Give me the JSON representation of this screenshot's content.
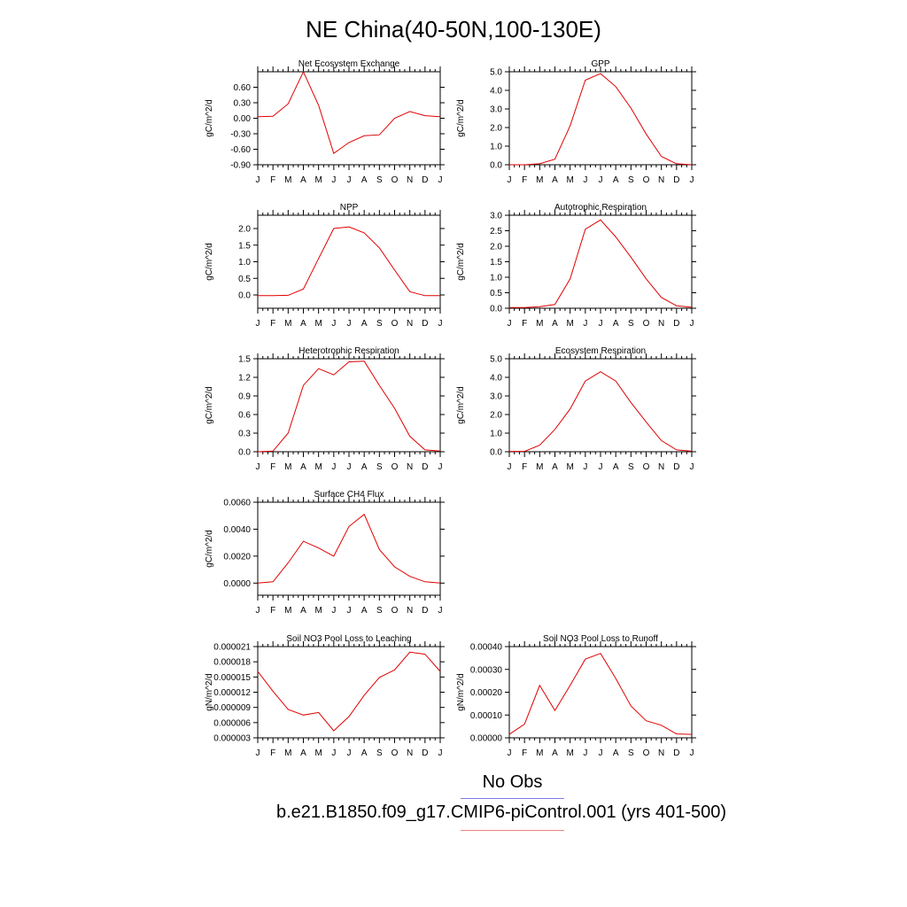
{
  "figure_title": "NE China(40-50N,100-130E)",
  "legend": {
    "obs_label": "No Obs",
    "obs_color": "#7a7ae8",
    "case_label": "b.e21.B1850.f09_g17.CMIP6-piControl.001 (yrs 401-500)",
    "case_color": "#f08080"
  },
  "line_color": "#e00000",
  "chart_data": [
    {
      "type": "line",
      "title": "Net Ecosystem Exchange",
      "ylabel": "gC/m^2/d",
      "categories": [
        "J",
        "F",
        "M",
        "A",
        "M",
        "J",
        "J",
        "A",
        "S",
        "O",
        "N",
        "D",
        "J"
      ],
      "ylim": [
        -0.9,
        0.9
      ],
      "yticks": [
        -0.9,
        -0.6,
        -0.3,
        0.0,
        0.3,
        0.6
      ],
      "ytick_labels": [
        "-0.90",
        "-0.60",
        "-0.30",
        "0.00",
        "0.30",
        "0.60"
      ],
      "values": [
        0.03,
        0.04,
        0.28,
        0.9,
        0.25,
        -0.68,
        -0.47,
        -0.34,
        -0.32,
        0.0,
        0.13,
        0.05,
        0.03
      ]
    },
    {
      "type": "line",
      "title": "GPP",
      "ylabel": "gC/m^2/d",
      "categories": [
        "J",
        "F",
        "M",
        "A",
        "M",
        "J",
        "J",
        "A",
        "S",
        "O",
        "N",
        "D",
        "J"
      ],
      "ylim": [
        0,
        5
      ],
      "yticks": [
        0,
        1,
        2,
        3,
        4,
        5
      ],
      "ytick_labels": [
        "0.0",
        "1.0",
        "2.0",
        "3.0",
        "4.0",
        "5.0"
      ],
      "values": [
        0.0,
        0.0,
        0.05,
        0.3,
        2.1,
        4.55,
        4.9,
        4.2,
        3.05,
        1.65,
        0.45,
        0.05,
        0.0
      ]
    },
    {
      "type": "line",
      "title": "NPP",
      "ylabel": "gC/m^2/d",
      "categories": [
        "J",
        "F",
        "M",
        "A",
        "M",
        "J",
        "J",
        "A",
        "S",
        "O",
        "N",
        "D",
        "J"
      ],
      "ylim": [
        -0.4,
        2.4
      ],
      "yticks": [
        0,
        0.5,
        1,
        1.5,
        2
      ],
      "ytick_labels": [
        "0.0",
        "0.5",
        "1.0",
        "1.5",
        "2.0"
      ],
      "values": [
        -0.02,
        -0.02,
        -0.01,
        0.18,
        1.1,
        2.0,
        2.05,
        1.87,
        1.42,
        0.75,
        0.1,
        -0.02,
        -0.02
      ]
    },
    {
      "type": "line",
      "title": "Autotrophic Respiration",
      "ylabel": "gC/m^2/d",
      "categories": [
        "J",
        "F",
        "M",
        "A",
        "M",
        "J",
        "J",
        "A",
        "S",
        "O",
        "N",
        "D",
        "J"
      ],
      "ylim": [
        0,
        3
      ],
      "yticks": [
        0,
        0.5,
        1,
        1.5,
        2,
        2.5,
        3
      ],
      "ytick_labels": [
        "0.0",
        "0.5",
        "1.0",
        "1.5",
        "2.0",
        "2.5",
        "3.0"
      ],
      "values": [
        0.02,
        0.02,
        0.05,
        0.12,
        0.95,
        2.55,
        2.85,
        2.3,
        1.65,
        0.95,
        0.35,
        0.08,
        0.03
      ]
    },
    {
      "type": "line",
      "title": "Heterotrophic Respiration",
      "ylabel": "gC/m^2/d",
      "categories": [
        "J",
        "F",
        "M",
        "A",
        "M",
        "J",
        "J",
        "A",
        "S",
        "O",
        "N",
        "D",
        "J"
      ],
      "ylim": [
        0,
        1.5
      ],
      "yticks": [
        0,
        0.3,
        0.6,
        0.9,
        1.2,
        1.5
      ],
      "ytick_labels": [
        "0.0",
        "0.3",
        "0.6",
        "0.9",
        "1.2",
        "1.5"
      ],
      "values": [
        0.0,
        0.01,
        0.3,
        1.07,
        1.34,
        1.24,
        1.45,
        1.46,
        1.07,
        0.7,
        0.25,
        0.03,
        0.01
      ]
    },
    {
      "type": "line",
      "title": "Ecosystem Respiration",
      "ylabel": "gC/m^2/d",
      "categories": [
        "J",
        "F",
        "M",
        "A",
        "M",
        "J",
        "J",
        "A",
        "S",
        "O",
        "N",
        "D",
        "J"
      ],
      "ylim": [
        0,
        5
      ],
      "yticks": [
        0,
        1,
        2,
        3,
        4,
        5
      ],
      "ytick_labels": [
        "0.0",
        "1.0",
        "2.0",
        "3.0",
        "4.0",
        "5.0"
      ],
      "values": [
        0.02,
        0.02,
        0.35,
        1.2,
        2.3,
        3.8,
        4.3,
        3.8,
        2.65,
        1.6,
        0.6,
        0.1,
        0.03
      ]
    },
    {
      "type": "line",
      "title": "Surface CH4 Flux",
      "ylabel": "gC/m^2/d",
      "categories": [
        "J",
        "F",
        "M",
        "A",
        "M",
        "J",
        "J",
        "A",
        "S",
        "O",
        "N",
        "D",
        "J"
      ],
      "ylim": [
        -0.0009,
        0.006
      ],
      "yticks": [
        0,
        0.002,
        0.004,
        0.006
      ],
      "ytick_labels": [
        "0.0000",
        "0.0020",
        "0.0040",
        "0.0060"
      ],
      "values": [
        0.0,
        0.0001,
        0.0015,
        0.0031,
        0.0026,
        0.002,
        0.0042,
        0.0051,
        0.0025,
        0.0012,
        0.0005,
        0.0001,
        0.0
      ]
    },
    {
      "type": "line",
      "title": "Soil NO3 Pool Loss to Leaching",
      "ylabel": "gN/m^2/d",
      "categories": [
        "J",
        "F",
        "M",
        "A",
        "M",
        "J",
        "J",
        "A",
        "S",
        "O",
        "N",
        "D",
        "J"
      ],
      "ylim": [
        3e-06,
        2.1e-05
      ],
      "yticks": [
        3e-06,
        6e-06,
        9e-06,
        1.2e-05,
        1.5e-05,
        1.8e-05,
        2.1e-05
      ],
      "ytick_labels": [
        "0.000003",
        "0.000006",
        "0.000009",
        "0.000012",
        "0.000015",
        "0.000018",
        "0.000021"
      ],
      "values": [
        1.61e-05,
        1.22e-05,
        8.6e-06,
        7.5e-06,
        8e-06,
        4.4e-06,
        7.2e-06,
        1.14e-05,
        1.49e-05,
        1.64e-05,
        1.99e-05,
        1.95e-05,
        1.61e-05
      ]
    },
    {
      "type": "line",
      "title": "Soil NO3 Pool Loss to Runoff",
      "ylabel": "gN/m^2/d",
      "categories": [
        "J",
        "F",
        "M",
        "A",
        "M",
        "J",
        "J",
        "A",
        "S",
        "O",
        "N",
        "D",
        "J"
      ],
      "ylim": [
        0,
        0.0004
      ],
      "yticks": [
        0,
        0.0001,
        0.0002,
        0.0003,
        0.0004
      ],
      "ytick_labels": [
        "0.00000",
        "0.00010",
        "0.00020",
        "0.00030",
        "0.00040"
      ],
      "values": [
        1.5e-05,
        6e-05,
        0.00023,
        0.00012,
        0.00023,
        0.000345,
        0.00037,
        0.00026,
        0.00014,
        7.5e-05,
        5.5e-05,
        1.7e-05,
        1.5e-05
      ]
    }
  ]
}
